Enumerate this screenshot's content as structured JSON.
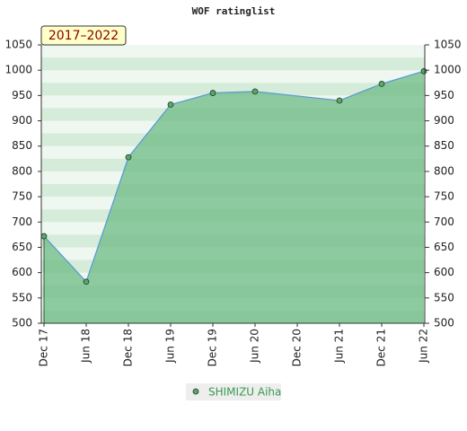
{
  "chart_data": {
    "type": "area",
    "title": "WOF ratinglist",
    "annotation": "2017–2022",
    "x": [
      "2017-12",
      "2018-06",
      "2018-12",
      "2019-06",
      "2019-12",
      "2020-06",
      "2021-06",
      "2021-12",
      "2022-06"
    ],
    "series": [
      {
        "name": "SHIMIZU Aiha",
        "color": "#5b9bd5",
        "fill": "#6dbb84",
        "marker_color": "#5aa56a",
        "values": [
          672,
          582,
          828,
          932,
          955,
          958,
          940,
          973,
          998
        ]
      }
    ],
    "xlim": [
      "2017-12",
      "2022-06"
    ],
    "xticks": [
      {
        "value": "2017-12",
        "label": "Dec 17"
      },
      {
        "value": "2018-06",
        "label": "Jun 18"
      },
      {
        "value": "2018-12",
        "label": "Dec 18"
      },
      {
        "value": "2019-06",
        "label": "Jun 19"
      },
      {
        "value": "2019-12",
        "label": "Dec 19"
      },
      {
        "value": "2020-06",
        "label": "Jun 20"
      },
      {
        "value": "2020-12",
        "label": "Dec 20"
      },
      {
        "value": "2021-06",
        "label": "Jun 21"
      },
      {
        "value": "2021-12",
        "label": "Dec 21"
      },
      {
        "value": "2022-06",
        "label": "Jun 22"
      }
    ],
    "ylim": [
      500,
      1050
    ],
    "yticks": [
      500,
      550,
      600,
      650,
      700,
      750,
      800,
      850,
      900,
      950,
      1000,
      1050
    ],
    "y2lim": [
      500,
      1050
    ],
    "y2ticks": [
      500,
      550,
      600,
      650,
      700,
      750,
      800,
      850,
      900,
      950,
      1000,
      1050
    ]
  }
}
